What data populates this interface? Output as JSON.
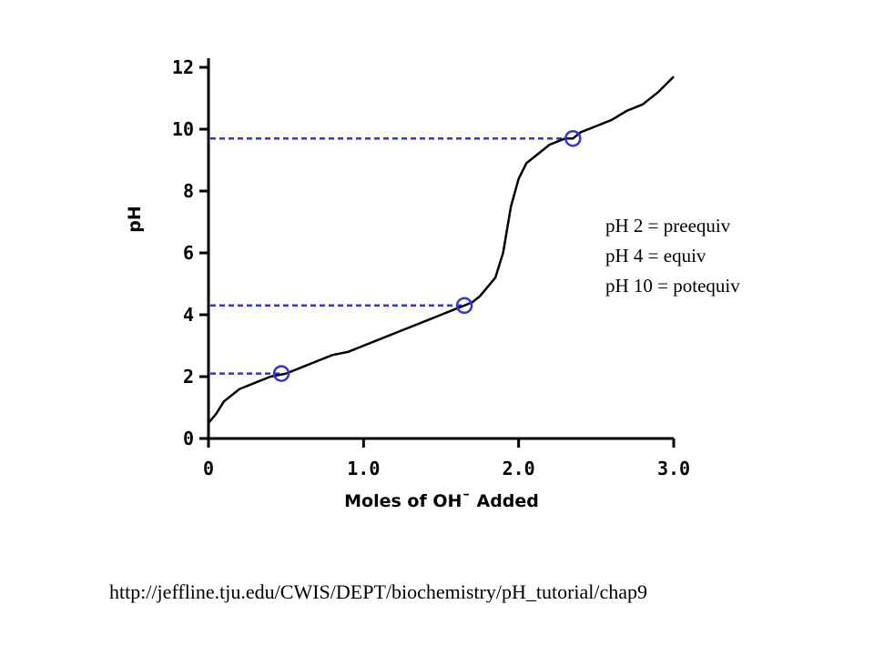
{
  "chart_data": {
    "type": "line",
    "xlabel": "Moles of OH¯ Added",
    "ylabel": "pH",
    "xlim": [
      0,
      3.0
    ],
    "ylim": [
      0,
      12
    ],
    "x_ticks": [
      "0",
      "1.0",
      "2.0",
      "3.0"
    ],
    "y_ticks": [
      "0",
      "2",
      "4",
      "6",
      "8",
      "10",
      "12"
    ],
    "x_tick_values": [
      0,
      1.0,
      2.0,
      3.0
    ],
    "y_tick_values": [
      0,
      2,
      4,
      6,
      8,
      10,
      12
    ],
    "grid": false,
    "series": [
      {
        "color": "#000000",
        "x": [
          0.0,
          0.05,
          0.1,
          0.2,
          0.3,
          0.4,
          0.5,
          0.6,
          0.7,
          0.8,
          0.9,
          1.0,
          1.1,
          1.2,
          1.3,
          1.4,
          1.5,
          1.6,
          1.65,
          1.7,
          1.75,
          1.8,
          1.85,
          1.9,
          1.95,
          2.0,
          2.05,
          2.1,
          2.2,
          2.3,
          2.35,
          2.4,
          2.5,
          2.6,
          2.7,
          2.8,
          2.9,
          3.0
        ],
        "y": [
          0.5,
          0.8,
          1.2,
          1.6,
          1.8,
          2.0,
          2.1,
          2.3,
          2.5,
          2.7,
          2.8,
          3.0,
          3.2,
          3.4,
          3.6,
          3.8,
          4.0,
          4.2,
          4.3,
          4.4,
          4.6,
          4.9,
          5.2,
          6.0,
          7.5,
          8.4,
          8.9,
          9.1,
          9.5,
          9.7,
          9.7,
          9.9,
          10.1,
          10.3,
          10.6,
          10.8,
          11.2,
          11.7
        ]
      }
    ],
    "markers": [
      {
        "x": 0.47,
        "y": 2.1,
        "color": "#3333dd"
      },
      {
        "x": 1.65,
        "y": 4.3,
        "color": "#3333dd"
      },
      {
        "x": 2.35,
        "y": 9.7,
        "color": "#3333dd"
      }
    ],
    "guide_lines": [
      {
        "y": 2.1,
        "x_end": 0.47,
        "color": "#3333dd"
      },
      {
        "y": 4.3,
        "x_end": 1.65,
        "color": "#3333dd"
      },
      {
        "y": 9.7,
        "x_end": 2.35,
        "color": "#3333dd"
      }
    ]
  },
  "notes": [
    "pH 2 = preequiv",
    "pH 4 = equiv",
    "pH 10 = potequiv"
  ],
  "source_url": "http://jeffline.tju.edu/CWIS/DEPT/biochemistry/pH_tutorial/chap9"
}
